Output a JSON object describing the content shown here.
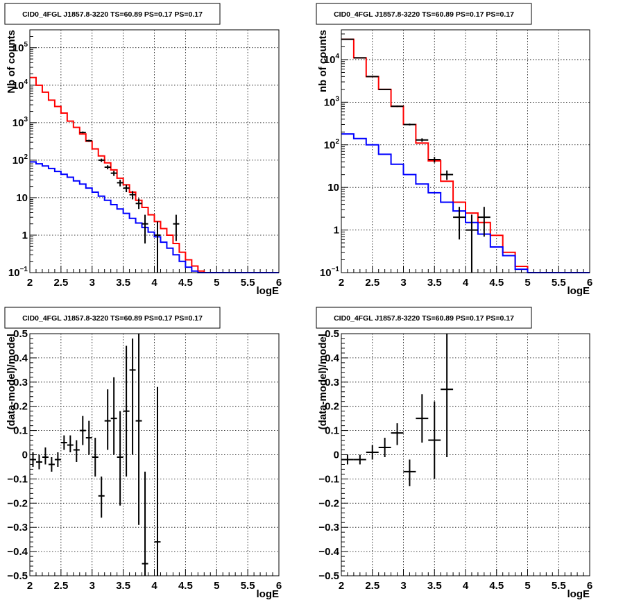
{
  "chart_data": [
    {
      "type": "histogram",
      "title": "CID0_4FGL J1857.8-3220 TS=60.89 PS=0.17 PS=0.17",
      "xlabel": "logE",
      "ylabel": "Nb of counts",
      "xlim": [
        2,
        6
      ],
      "ylim": [
        0.1,
        300000
      ],
      "yscale": "log",
      "grid": true,
      "xticks": [
        "2",
        "2.5",
        "3",
        "3.5",
        "4",
        "4.5",
        "5",
        "5.5",
        "6"
      ],
      "yticks": [
        {
          "value": 0.1,
          "label": "10",
          "sup": "−1"
        },
        {
          "value": 1,
          "label": "1",
          "sup": ""
        },
        {
          "value": 10,
          "label": "10",
          "sup": ""
        },
        {
          "value": 100,
          "label": "10",
          "sup": "2"
        },
        {
          "value": 1000,
          "label": "10",
          "sup": "3"
        },
        {
          "value": 10000,
          "label": "10",
          "sup": "4"
        },
        {
          "value": 100000,
          "label": "10",
          "sup": "5"
        }
      ],
      "series": [
        {
          "role": "model_total",
          "style": "hist",
          "color": "#ff0000",
          "edges": [
            2.0,
            2.1,
            2.2,
            2.3,
            2.4,
            2.5,
            2.6,
            2.7,
            2.8,
            2.9,
            3.0,
            3.1,
            3.2,
            3.3,
            3.4,
            3.5,
            3.6,
            3.7,
            3.8,
            3.9,
            4.0,
            4.1,
            4.2,
            4.3,
            4.4,
            4.5,
            4.6,
            4.7,
            4.8,
            4.9,
            5.0,
            5.1,
            5.2,
            5.3,
            5.4,
            5.5,
            5.6,
            5.7,
            5.8,
            5.9,
            6.0
          ],
          "values": [
            16000,
            10000,
            6500,
            4000,
            2700,
            1800,
            1100,
            750,
            500,
            320,
            200,
            130,
            85,
            55,
            33,
            22,
            14,
            8.5,
            5.5,
            3.5,
            2.3,
            1.5,
            1.0,
            0.6,
            0.35,
            0.22,
            0.15,
            0.11,
            0.1,
            0.1,
            0.1,
            0.1,
            0.1,
            0.1,
            0.1,
            0.1,
            0.1,
            0.1,
            0.1,
            0.1
          ]
        },
        {
          "role": "model_component",
          "style": "hist",
          "color": "#0000ff",
          "edges": [
            2.0,
            2.1,
            2.2,
            2.3,
            2.4,
            2.5,
            2.6,
            2.7,
            2.8,
            2.9,
            3.0,
            3.1,
            3.2,
            3.3,
            3.4,
            3.5,
            3.6,
            3.7,
            3.8,
            3.9,
            4.0,
            4.1,
            4.2,
            4.3,
            4.4,
            4.5,
            4.6,
            4.7,
            4.8,
            4.9,
            5.0,
            5.1,
            5.2,
            5.3,
            5.4,
            5.5,
            5.6,
            5.7,
            5.8,
            5.9,
            6.0
          ],
          "values": [
            90,
            80,
            70,
            60,
            50,
            42,
            35,
            28,
            23,
            18,
            14,
            11,
            8.5,
            6.5,
            5,
            3.8,
            2.8,
            2.1,
            1.6,
            1.2,
            0.9,
            0.65,
            0.45,
            0.3,
            0.2,
            0.14,
            0.11,
            0.1,
            0.1,
            0.1,
            0.1,
            0.1,
            0.1,
            0.1,
            0.1,
            0.1,
            0.1,
            0.1,
            0.1,
            0.1
          ]
        },
        {
          "role": "data",
          "style": "errorbar",
          "color": "#000000",
          "points": [
            {
              "x": 2.85,
              "xerr": 0.05,
              "y": 550,
              "ylo": 520,
              "yhi": 580
            },
            {
              "x": 2.95,
              "xerr": 0.05,
              "y": 330,
              "ylo": 310,
              "yhi": 350
            },
            {
              "x": 3.15,
              "xerr": 0.05,
              "y": 100,
              "ylo": 90,
              "yhi": 110
            },
            {
              "x": 3.25,
              "xerr": 0.05,
              "y": 65,
              "ylo": 57,
              "yhi": 73
            },
            {
              "x": 3.35,
              "xerr": 0.05,
              "y": 45,
              "ylo": 38,
              "yhi": 52
            },
            {
              "x": 3.45,
              "xerr": 0.05,
              "y": 25,
              "ylo": 20,
              "yhi": 30
            },
            {
              "x": 3.55,
              "xerr": 0.05,
              "y": 18,
              "ylo": 14,
              "yhi": 22
            },
            {
              "x": 3.65,
              "xerr": 0.05,
              "y": 12,
              "ylo": 9,
              "yhi": 15
            },
            {
              "x": 3.75,
              "xerr": 0.05,
              "y": 7,
              "ylo": 5,
              "yhi": 9.5
            },
            {
              "x": 3.85,
              "xerr": 0.05,
              "y": 2,
              "ylo": 0.6,
              "yhi": 3.5
            },
            {
              "x": 4.05,
              "xerr": 0.05,
              "y": 1,
              "ylo": 0.1,
              "yhi": 2.3
            },
            {
              "x": 4.35,
              "xerr": 0.05,
              "y": 2,
              "ylo": 0.7,
              "yhi": 3.5
            }
          ]
        }
      ]
    },
    {
      "type": "histogram",
      "title": "CID0_4FGL J1857.8-3220 TS=60.89 PS=0.17 PS=0.17",
      "xlabel": "logE",
      "ylabel": "nb of counts",
      "xlim": [
        2,
        6
      ],
      "ylim": [
        0.1,
        50000
      ],
      "yscale": "log",
      "grid": true,
      "xticks": [
        "2",
        "2.5",
        "3",
        "3.5",
        "4",
        "4.5",
        "5",
        "5.5",
        "6"
      ],
      "yticks": [
        {
          "value": 0.1,
          "label": "10",
          "sup": "−1"
        },
        {
          "value": 1,
          "label": "1",
          "sup": ""
        },
        {
          "value": 10,
          "label": "10",
          "sup": ""
        },
        {
          "value": 100,
          "label": "10",
          "sup": "2"
        },
        {
          "value": 1000,
          "label": "10",
          "sup": "3"
        },
        {
          "value": 10000,
          "label": "10",
          "sup": "4"
        }
      ],
      "series": [
        {
          "role": "model_total",
          "style": "hist",
          "color": "#ff0000",
          "edges": [
            2.0,
            2.2,
            2.4,
            2.6,
            2.8,
            3.0,
            3.2,
            3.4,
            3.6,
            3.8,
            4.0,
            4.2,
            4.4,
            4.6,
            4.8,
            5.0,
            5.2,
            5.4,
            5.6,
            5.8,
            6.0
          ],
          "values": [
            30000,
            11000,
            4000,
            2000,
            800,
            300,
            110,
            42,
            14,
            4.5,
            2.5,
            1.5,
            0.75,
            0.3,
            0.14,
            0.1,
            0.1,
            0.1,
            0.1,
            0.1
          ]
        },
        {
          "role": "model_component",
          "style": "hist",
          "color": "#0000ff",
          "edges": [
            2.0,
            2.2,
            2.4,
            2.6,
            2.8,
            3.0,
            3.2,
            3.4,
            3.6,
            3.8,
            4.0,
            4.2,
            4.4,
            4.6,
            4.8,
            5.0,
            5.2,
            5.4,
            5.6,
            5.8,
            6.0
          ],
          "values": [
            180,
            140,
            100,
            60,
            35,
            20,
            12,
            7.5,
            4.5,
            2.8,
            1.5,
            0.8,
            0.4,
            0.25,
            0.12,
            0.1,
            0.1,
            0.1,
            0.1,
            0.1
          ]
        },
        {
          "role": "data",
          "style": "errorbar",
          "color": "#000000",
          "points": [
            {
              "x": 2.1,
              "xerr": 0.1,
              "y": 30000,
              "ylo": 29500,
              "yhi": 30500
            },
            {
              "x": 2.3,
              "xerr": 0.1,
              "y": 11000,
              "ylo": 10800,
              "yhi": 11200
            },
            {
              "x": 2.5,
              "xerr": 0.1,
              "y": 4000,
              "ylo": 3900,
              "yhi": 4100
            },
            {
              "x": 2.7,
              "xerr": 0.1,
              "y": 2000,
              "ylo": 1950,
              "yhi": 2050
            },
            {
              "x": 2.9,
              "xerr": 0.1,
              "y": 800,
              "ylo": 770,
              "yhi": 830
            },
            {
              "x": 3.1,
              "xerr": 0.1,
              "y": 300,
              "ylo": 285,
              "yhi": 315
            },
            {
              "x": 3.3,
              "xerr": 0.1,
              "y": 130,
              "ylo": 118,
              "yhi": 142
            },
            {
              "x": 3.5,
              "xerr": 0.1,
              "y": 45,
              "ylo": 38,
              "yhi": 52
            },
            {
              "x": 3.7,
              "xerr": 0.1,
              "y": 20,
              "ylo": 15,
              "yhi": 25
            },
            {
              "x": 3.9,
              "xerr": 0.1,
              "y": 2,
              "ylo": 0.6,
              "yhi": 3.5
            },
            {
              "x": 4.1,
              "xerr": 0.1,
              "y": 1,
              "ylo": 0.1,
              "yhi": 2.3
            },
            {
              "x": 4.3,
              "xerr": 0.1,
              "y": 2,
              "ylo": 0.7,
              "yhi": 3.5
            }
          ]
        }
      ]
    },
    {
      "type": "errorbar",
      "title": "CID0_4FGL J1857.8-3220 TS=60.89 PS=0.17 PS=0.17",
      "xlabel": "logE",
      "ylabel": "(data-model)/model",
      "xlim": [
        2,
        6
      ],
      "ylim": [
        -0.5,
        0.5
      ],
      "yscale": "linear",
      "grid": true,
      "xticks": [
        "2",
        "2.5",
        "3",
        "3.5",
        "4",
        "4.5",
        "5",
        "5.5",
        "6"
      ],
      "yticks": [
        {
          "value": -0.5,
          "label": "−0.5"
        },
        {
          "value": -0.4,
          "label": "−0.4"
        },
        {
          "value": -0.3,
          "label": "−0.3"
        },
        {
          "value": -0.2,
          "label": "−0.2"
        },
        {
          "value": -0.1,
          "label": "−0.1"
        },
        {
          "value": 0,
          "label": "0"
        },
        {
          "value": 0.1,
          "label": "0.1"
        },
        {
          "value": 0.2,
          "label": "0.2"
        },
        {
          "value": 0.3,
          "label": "0.3"
        },
        {
          "value": 0.4,
          "label": "0.4"
        },
        {
          "value": 0.5,
          "label": "0.5"
        }
      ],
      "series": [
        {
          "role": "residual",
          "style": "errorbar",
          "color": "#000000",
          "points": [
            {
              "x": 2.05,
              "xerr": 0.05,
              "y": -0.02,
              "ylo": -0.05,
              "yhi": 0.01
            },
            {
              "x": 2.15,
              "xerr": 0.05,
              "y": -0.03,
              "ylo": -0.06,
              "yhi": 0.0
            },
            {
              "x": 2.25,
              "xerr": 0.05,
              "y": -0.01,
              "ylo": -0.04,
              "yhi": 0.03
            },
            {
              "x": 2.35,
              "xerr": 0.05,
              "y": -0.04,
              "ylo": -0.07,
              "yhi": -0.01
            },
            {
              "x": 2.45,
              "xerr": 0.05,
              "y": -0.02,
              "ylo": -0.05,
              "yhi": 0.01
            },
            {
              "x": 2.55,
              "xerr": 0.05,
              "y": 0.05,
              "ylo": 0.02,
              "yhi": 0.08
            },
            {
              "x": 2.65,
              "xerr": 0.05,
              "y": 0.04,
              "ylo": 0.01,
              "yhi": 0.08
            },
            {
              "x": 2.75,
              "xerr": 0.05,
              "y": 0.02,
              "ylo": -0.03,
              "yhi": 0.06
            },
            {
              "x": 2.85,
              "xerr": 0.05,
              "y": 0.1,
              "ylo": 0.04,
              "yhi": 0.16
            },
            {
              "x": 2.95,
              "xerr": 0.05,
              "y": 0.07,
              "ylo": 0.0,
              "yhi": 0.14
            },
            {
              "x": 3.05,
              "xerr": 0.05,
              "y": -0.01,
              "ylo": -0.09,
              "yhi": 0.07
            },
            {
              "x": 3.15,
              "xerr": 0.05,
              "y": -0.17,
              "ylo": -0.26,
              "yhi": -0.09
            },
            {
              "x": 3.25,
              "xerr": 0.05,
              "y": 0.14,
              "ylo": 0.02,
              "yhi": 0.27
            },
            {
              "x": 3.35,
              "xerr": 0.05,
              "y": 0.15,
              "ylo": 0.0,
              "yhi": 0.32
            },
            {
              "x": 3.45,
              "xerr": 0.05,
              "y": -0.01,
              "ylo": -0.21,
              "yhi": 0.18
            },
            {
              "x": 3.55,
              "xerr": 0.05,
              "y": 0.18,
              "ylo": -0.09,
              "yhi": 0.45
            },
            {
              "x": 3.65,
              "xerr": 0.05,
              "y": 0.35,
              "ylo": 0.0,
              "yhi": 0.48
            },
            {
              "x": 3.75,
              "xerr": 0.05,
              "y": 0.14,
              "ylo": -0.29,
              "yhi": 0.5
            },
            {
              "x": 3.85,
              "xerr": 0.05,
              "y": -0.45,
              "ylo": -0.5,
              "yhi": -0.07
            },
            {
              "x": 4.05,
              "xerr": 0.05,
              "y": -0.36,
              "ylo": -0.5,
              "yhi": 0.28
            }
          ]
        }
      ]
    },
    {
      "type": "errorbar",
      "title": "CID0_4FGL J1857.8-3220 TS=60.89 PS=0.17 PS=0.17",
      "xlabel": "logE",
      "ylabel": "(data-model)/model",
      "xlim": [
        2,
        6
      ],
      "ylim": [
        -0.5,
        0.5
      ],
      "yscale": "linear",
      "grid": true,
      "xticks": [
        "2",
        "2.5",
        "3",
        "3.5",
        "4",
        "4.5",
        "5",
        "5.5",
        "6"
      ],
      "yticks": [
        {
          "value": -0.5,
          "label": "−0.5"
        },
        {
          "value": -0.4,
          "label": "−0.4"
        },
        {
          "value": -0.3,
          "label": "−0.3"
        },
        {
          "value": -0.2,
          "label": "−0.2"
        },
        {
          "value": -0.1,
          "label": "−0.1"
        },
        {
          "value": 0,
          "label": "0"
        },
        {
          "value": 0.1,
          "label": "0.1"
        },
        {
          "value": 0.2,
          "label": "0.2"
        },
        {
          "value": 0.3,
          "label": "0.3"
        },
        {
          "value": 0.4,
          "label": "0.4"
        },
        {
          "value": 0.5,
          "label": "0.5"
        }
      ],
      "series": [
        {
          "role": "residual",
          "style": "errorbar",
          "color": "#000000",
          "points": [
            {
              "x": 2.1,
              "xerr": 0.1,
              "y": -0.02,
              "ylo": -0.04,
              "yhi": 0.0
            },
            {
              "x": 2.3,
              "xerr": 0.1,
              "y": -0.02,
              "ylo": -0.04,
              "yhi": 0.0
            },
            {
              "x": 2.5,
              "xerr": 0.1,
              "y": 0.01,
              "ylo": -0.02,
              "yhi": 0.04
            },
            {
              "x": 2.7,
              "xerr": 0.1,
              "y": 0.03,
              "ylo": -0.01,
              "yhi": 0.07
            },
            {
              "x": 2.9,
              "xerr": 0.1,
              "y": 0.09,
              "ylo": 0.04,
              "yhi": 0.13
            },
            {
              "x": 3.1,
              "xerr": 0.1,
              "y": -0.07,
              "ylo": -0.13,
              "yhi": -0.02
            },
            {
              "x": 3.3,
              "xerr": 0.1,
              "y": 0.15,
              "ylo": 0.05,
              "yhi": 0.25
            },
            {
              "x": 3.5,
              "xerr": 0.1,
              "y": 0.06,
              "ylo": -0.1,
              "yhi": 0.22
            },
            {
              "x": 3.7,
              "xerr": 0.1,
              "y": 0.27,
              "ylo": -0.01,
              "yhi": 0.5
            }
          ]
        }
      ]
    }
  ]
}
